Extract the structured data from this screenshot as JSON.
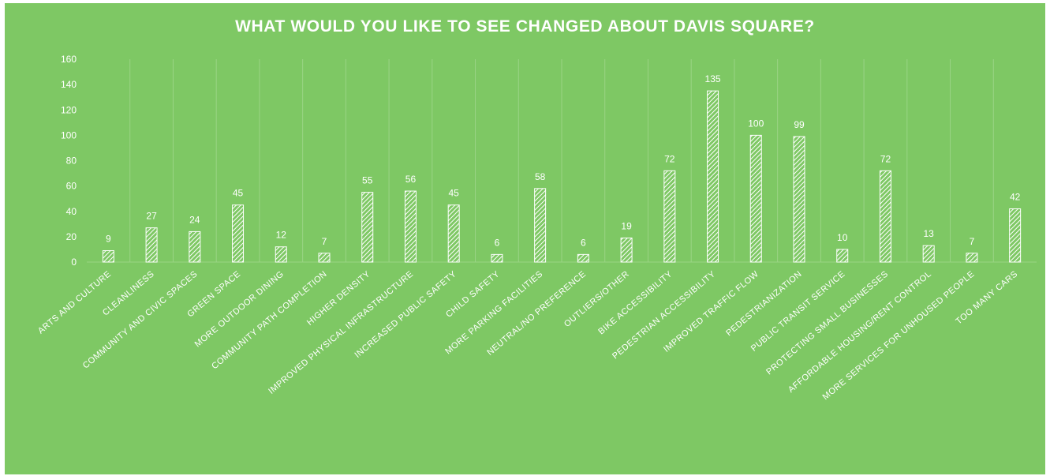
{
  "colors": {
    "background": "#7ec864",
    "bar_stroke": "#ffffff",
    "grid": "#9ad485",
    "text": "#ffffff"
  },
  "chart_data": {
    "type": "bar",
    "title": "WHAT WOULD YOU LIKE TO SEE CHANGED ABOUT DAVIS SQUARE?",
    "xlabel": "",
    "ylabel": "",
    "ylim": [
      0,
      160
    ],
    "yticks": [
      0,
      20,
      40,
      60,
      80,
      100,
      120,
      140,
      160
    ],
    "grid": "vertical",
    "legend": "none",
    "bar_fill": "white diagonal hatch",
    "categories": [
      "ARTS AND CULTURE",
      "CLEANLINESS",
      "COMMUNITY AND CIVIC SPACES",
      "GREEN SPACE",
      "MORE OUTDOOR DINING",
      "COMMUNITY PATH COMPLETION",
      "HIGHER DENSITY",
      "IMPROVED PHYSICAL INFRASTRUCTURE",
      "INCREASED PUBLIC SAFETY",
      "CHILD SAFETY",
      "MORE PARKING FACILITIES",
      "NEUTRAL/NO PREFERENCE",
      "OUTLIERS/OTHER",
      "BIKE ACCESSIBILITY",
      "PEDESTRIAN ACCESSIBILITY",
      "IMPROVED TRAFFIC FLOW",
      "PEDESTRIANIZATION",
      "PUBLIC TRANSIT SERVICE",
      "PROTECTING SMALL BUSINESSES",
      "AFFORDABLE HOUSING/RENT CONTROL",
      "MORE SERVICES FOR UNHOUSED PEOPLE",
      "TOO MANY CARS"
    ],
    "values": [
      9,
      27,
      24,
      45,
      12,
      7,
      55,
      56,
      45,
      6,
      58,
      6,
      19,
      72,
      135,
      100,
      99,
      10,
      72,
      13,
      7,
      42
    ]
  }
}
